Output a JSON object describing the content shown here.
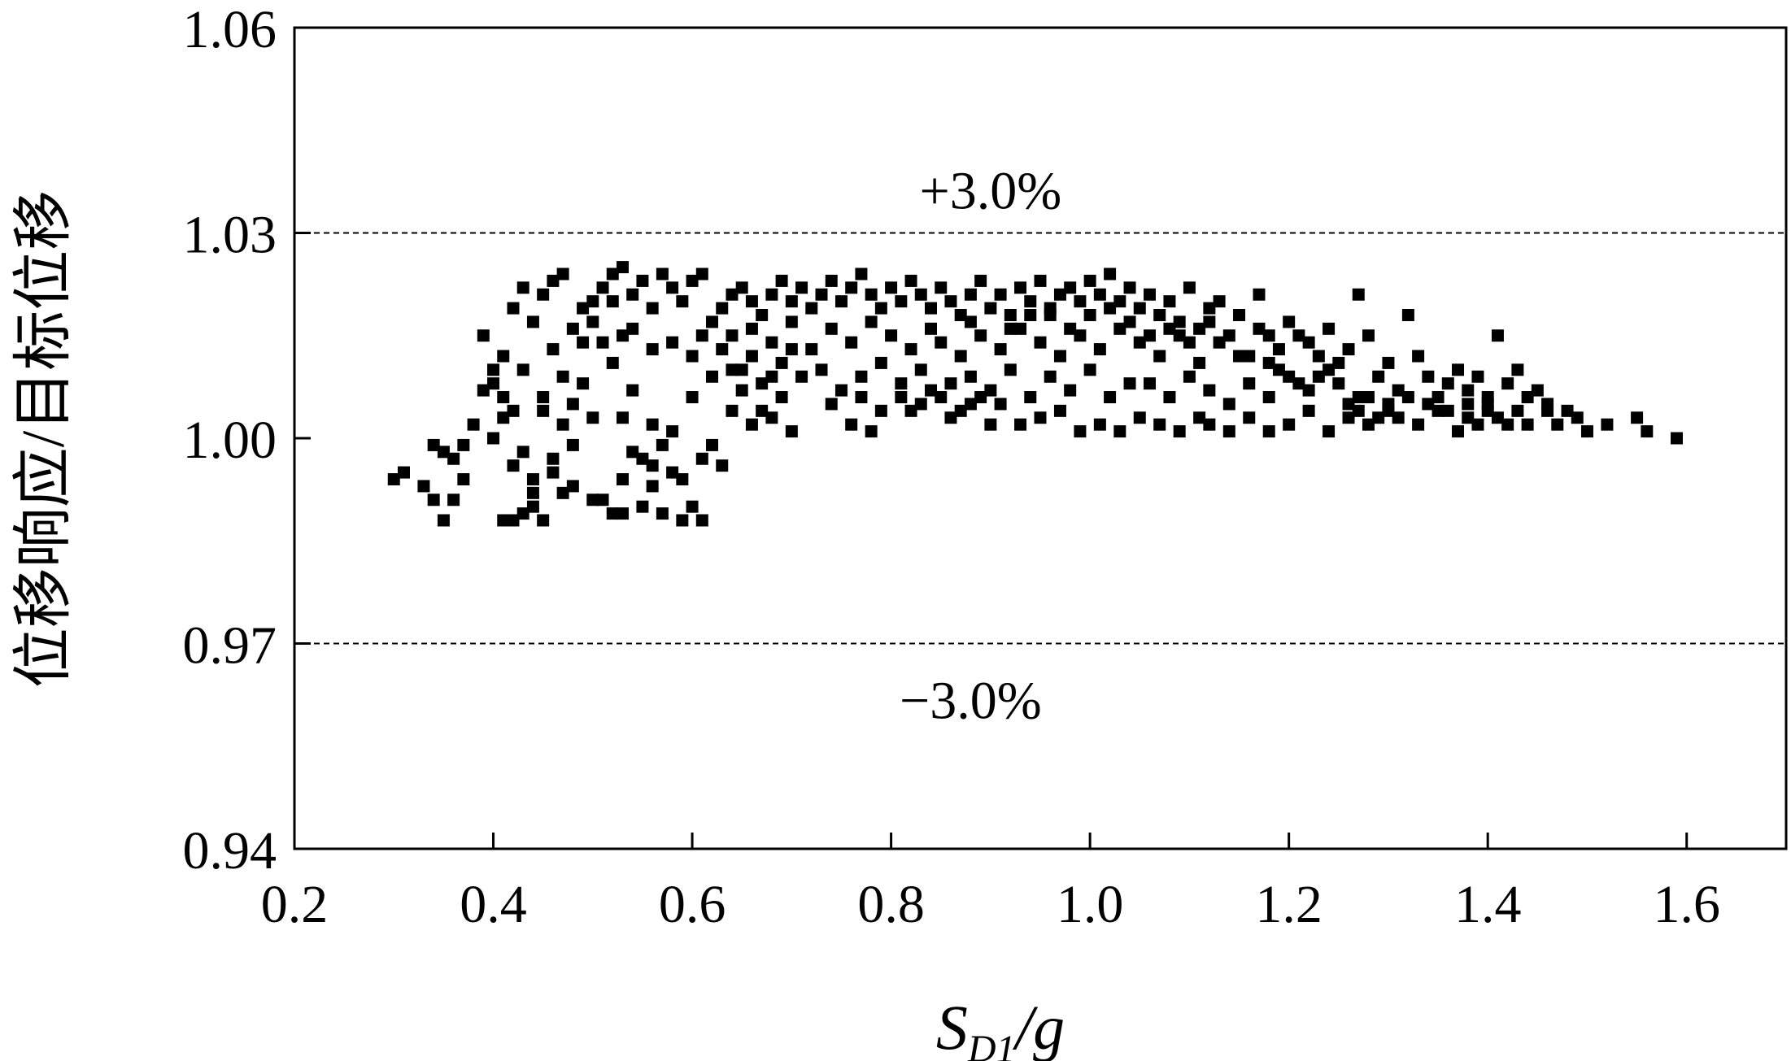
{
  "chart_data": {
    "type": "scatter",
    "title": "",
    "xlabel": {
      "main": "S",
      "sub": "D1",
      "rest": "/g"
    },
    "ylabel": "位移响应/目标位移",
    "xlim": [
      0.2,
      1.7
    ],
    "ylim": [
      0.94,
      1.06
    ],
    "xticks": [
      "0.2",
      "0.4",
      "0.6",
      "0.8",
      "1.0",
      "1.2",
      "1.4",
      "1.6"
    ],
    "yticks": [
      "0.94",
      "0.97",
      "1.00",
      "1.03",
      "1.06"
    ],
    "reference_lines": [
      {
        "y": 1.03,
        "label": "+3.0%",
        "label_x": 0.9
      },
      {
        "y": 0.97,
        "label": "−3.0%",
        "label_x": 0.88
      }
    ],
    "grid": false,
    "legend": "none",
    "marker": "square",
    "colors": {
      "marker": "#000000",
      "axes": "#000000",
      "reference_line": "#000000"
    },
    "points": [
      [
        0.3,
        0.994
      ],
      [
        0.31,
        0.995
      ],
      [
        0.33,
        0.993
      ],
      [
        0.34,
        0.991
      ],
      [
        0.35,
        0.988
      ],
      [
        0.35,
        0.998
      ],
      [
        0.36,
        0.991
      ],
      [
        0.34,
        0.999
      ],
      [
        0.37,
        0.994
      ],
      [
        0.36,
        0.997
      ],
      [
        0.37,
        0.999
      ],
      [
        0.38,
        1.002
      ],
      [
        0.39,
        1.007
      ],
      [
        0.4,
        1.0
      ],
      [
        0.39,
        1.015
      ],
      [
        0.4,
        1.01
      ],
      [
        0.41,
        1.003
      ],
      [
        0.41,
        0.988
      ],
      [
        0.42,
        0.988
      ],
      [
        0.43,
        0.989
      ],
      [
        0.44,
        0.99
      ],
      [
        0.45,
        0.988
      ],
      [
        0.44,
        0.994
      ],
      [
        0.43,
        0.998
      ],
      [
        0.42,
        1.004
      ],
      [
        0.41,
        1.012
      ],
      [
        0.42,
        1.019
      ],
      [
        0.43,
        1.022
      ],
      [
        0.44,
        1.017
      ],
      [
        0.45,
        1.021
      ],
      [
        0.46,
        1.023
      ],
      [
        0.47,
        1.024
      ],
      [
        0.46,
        1.013
      ],
      [
        0.45,
        1.006
      ],
      [
        0.46,
        0.997
      ],
      [
        0.47,
        0.992
      ],
      [
        0.48,
        1.005
      ],
      [
        0.49,
        1.014
      ],
      [
        0.5,
        1.02
      ],
      [
        0.51,
        1.022
      ],
      [
        0.52,
        1.024
      ],
      [
        0.53,
        1.025
      ],
      [
        0.54,
        1.021
      ],
      [
        0.55,
        1.023
      ],
      [
        0.56,
        1.019
      ],
      [
        0.57,
        1.024
      ],
      [
        0.58,
        1.022
      ],
      [
        0.59,
        1.02
      ],
      [
        0.6,
        1.023
      ],
      [
        0.61,
        1.024
      ],
      [
        0.5,
        0.991
      ],
      [
        0.51,
        0.991
      ],
      [
        0.52,
        0.989
      ],
      [
        0.53,
        0.989
      ],
      [
        0.55,
        0.99
      ],
      [
        0.57,
        0.989
      ],
      [
        0.59,
        0.988
      ],
      [
        0.61,
        0.988
      ],
      [
        0.56,
        0.993
      ],
      [
        0.58,
        0.995
      ],
      [
        0.55,
        0.997
      ],
      [
        0.57,
        0.999
      ],
      [
        0.53,
        1.003
      ],
      [
        0.54,
        1.007
      ],
      [
        0.56,
        1.002
      ],
      [
        0.58,
        1.001
      ],
      [
        0.6,
        1.006
      ],
      [
        0.62,
        0.999
      ],
      [
        0.63,
        0.996
      ],
      [
        0.62,
        1.009
      ],
      [
        0.51,
        1.014
      ],
      [
        0.52,
        1.011
      ],
      [
        0.54,
        1.016
      ],
      [
        0.56,
        1.013
      ],
      [
        0.58,
        1.014
      ],
      [
        0.6,
        1.012
      ],
      [
        0.49,
        1.008
      ],
      [
        0.5,
        1.003
      ],
      [
        0.48,
        0.999
      ],
      [
        0.47,
        1.002
      ],
      [
        0.63,
        1.019
      ],
      [
        0.64,
        1.021
      ],
      [
        0.65,
        1.022
      ],
      [
        0.66,
        1.02
      ],
      [
        0.67,
        1.018
      ],
      [
        0.68,
        1.021
      ],
      [
        0.69,
        1.023
      ],
      [
        0.7,
        1.02
      ],
      [
        0.71,
        1.022
      ],
      [
        0.72,
        1.019
      ],
      [
        0.73,
        1.021
      ],
      [
        0.74,
        1.023
      ],
      [
        0.75,
        1.02
      ],
      [
        0.76,
        1.022
      ],
      [
        0.77,
        1.024
      ],
      [
        0.78,
        1.021
      ],
      [
        0.79,
        1.019
      ],
      [
        0.8,
        1.022
      ],
      [
        0.81,
        1.02
      ],
      [
        0.82,
        1.023
      ],
      [
        0.64,
        1.015
      ],
      [
        0.66,
        1.016
      ],
      [
        0.68,
        1.014
      ],
      [
        0.7,
        1.017
      ],
      [
        0.72,
        1.013
      ],
      [
        0.74,
        1.016
      ],
      [
        0.76,
        1.014
      ],
      [
        0.78,
        1.017
      ],
      [
        0.8,
        1.015
      ],
      [
        0.82,
        1.013
      ],
      [
        0.65,
        1.01
      ],
      [
        0.67,
        1.008
      ],
      [
        0.69,
        1.011
      ],
      [
        0.71,
        1.009
      ],
      [
        0.73,
        1.01
      ],
      [
        0.75,
        1.007
      ],
      [
        0.77,
        1.009
      ],
      [
        0.79,
        1.011
      ],
      [
        0.81,
        1.008
      ],
      [
        0.83,
        1.01
      ],
      [
        0.64,
        1.004
      ],
      [
        0.66,
        1.002
      ],
      [
        0.68,
        1.003
      ],
      [
        0.7,
        1.001
      ],
      [
        0.74,
        1.005
      ],
      [
        0.78,
        1.001
      ],
      [
        0.82,
        1.004
      ],
      [
        0.86,
        1.003
      ],
      [
        0.88,
        1.005
      ],
      [
        0.9,
        1.002
      ],
      [
        0.83,
        1.021
      ],
      [
        0.84,
        1.019
      ],
      [
        0.85,
        1.022
      ],
      [
        0.86,
        1.02
      ],
      [
        0.87,
        1.018
      ],
      [
        0.88,
        1.021
      ],
      [
        0.89,
        1.023
      ],
      [
        0.9,
        1.019
      ],
      [
        0.91,
        1.021
      ],
      [
        0.92,
        1.018
      ],
      [
        0.93,
        1.022
      ],
      [
        0.94,
        1.02
      ],
      [
        0.95,
        1.023
      ],
      [
        0.96,
        1.019
      ],
      [
        0.97,
        1.021
      ],
      [
        0.98,
        1.022
      ],
      [
        0.99,
        1.02
      ],
      [
        1.0,
        1.023
      ],
      [
        1.01,
        1.021
      ],
      [
        1.02,
        1.024
      ],
      [
        0.85,
        1.014
      ],
      [
        0.87,
        1.012
      ],
      [
        0.89,
        1.015
      ],
      [
        0.91,
        1.013
      ],
      [
        0.93,
        1.016
      ],
      [
        0.95,
        1.014
      ],
      [
        0.97,
        1.012
      ],
      [
        0.99,
        1.015
      ],
      [
        1.01,
        1.013
      ],
      [
        1.03,
        1.016
      ],
      [
        0.86,
        1.008
      ],
      [
        0.88,
        1.009
      ],
      [
        0.9,
        1.007
      ],
      [
        0.92,
        1.01
      ],
      [
        0.94,
        1.006
      ],
      [
        0.96,
        1.009
      ],
      [
        0.98,
        1.007
      ],
      [
        1.0,
        1.01
      ],
      [
        1.02,
        1.006
      ],
      [
        1.04,
        1.008
      ],
      [
        0.93,
        1.002
      ],
      [
        0.95,
        1.003
      ],
      [
        0.97,
        1.004
      ],
      [
        0.99,
        1.001
      ],
      [
        1.01,
        1.002
      ],
      [
        1.03,
        1.001
      ],
      [
        1.05,
        1.003
      ],
      [
        1.07,
        1.002
      ],
      [
        1.09,
        1.001
      ],
      [
        1.11,
        1.003
      ],
      [
        1.03,
        1.02
      ],
      [
        1.04,
        1.022
      ],
      [
        1.05,
        1.019
      ],
      [
        1.06,
        1.021
      ],
      [
        1.07,
        1.018
      ],
      [
        1.08,
        1.02
      ],
      [
        1.09,
        1.017
      ],
      [
        1.1,
        1.022
      ],
      [
        1.11,
        1.016
      ],
      [
        1.12,
        1.019
      ],
      [
        1.05,
        1.014
      ],
      [
        1.07,
        1.012
      ],
      [
        1.09,
        1.015
      ],
      [
        1.11,
        1.011
      ],
      [
        1.13,
        1.014
      ],
      [
        1.15,
        1.012
      ],
      [
        1.17,
        1.016
      ],
      [
        1.19,
        1.013
      ],
      [
        1.21,
        1.015
      ],
      [
        1.23,
        1.012
      ],
      [
        1.06,
        1.008
      ],
      [
        1.08,
        1.006
      ],
      [
        1.1,
        1.009
      ],
      [
        1.12,
        1.007
      ],
      [
        1.14,
        1.005
      ],
      [
        1.16,
        1.008
      ],
      [
        1.18,
        1.006
      ],
      [
        1.2,
        1.009
      ],
      [
        1.22,
        1.007
      ],
      [
        1.24,
        1.01
      ],
      [
        1.13,
        1.02
      ],
      [
        1.15,
        1.018
      ],
      [
        1.17,
        1.021
      ],
      [
        1.18,
        1.015
      ],
      [
        1.2,
        1.017
      ],
      [
        1.22,
        1.014
      ],
      [
        1.24,
        1.016
      ],
      [
        1.26,
        1.013
      ],
      [
        1.27,
        1.021
      ],
      [
        1.28,
        1.015
      ],
      [
        1.12,
        1.002
      ],
      [
        1.14,
        1.001
      ],
      [
        1.16,
        1.003
      ],
      [
        1.18,
        1.001
      ],
      [
        1.2,
        1.002
      ],
      [
        1.22,
        1.004
      ],
      [
        1.24,
        1.001
      ],
      [
        1.26,
        1.003
      ],
      [
        1.28,
        1.002
      ],
      [
        1.3,
        1.004
      ],
      [
        1.25,
        1.008
      ],
      [
        1.27,
        1.006
      ],
      [
        1.29,
        1.009
      ],
      [
        1.3,
        1.011
      ],
      [
        1.31,
        1.007
      ],
      [
        1.32,
        1.018
      ],
      [
        1.33,
        1.012
      ],
      [
        1.34,
        1.009
      ],
      [
        1.35,
        1.006
      ],
      [
        1.36,
        1.008
      ],
      [
        1.31,
        1.003
      ],
      [
        1.33,
        1.002
      ],
      [
        1.35,
        1.004
      ],
      [
        1.37,
        1.001
      ],
      [
        1.38,
        1.003
      ],
      [
        1.39,
        1.002
      ],
      [
        1.4,
        1.004
      ],
      [
        1.41,
        1.003
      ],
      [
        1.42,
        1.002
      ],
      [
        1.43,
        1.004
      ],
      [
        1.37,
        1.01
      ],
      [
        1.38,
        1.007
      ],
      [
        1.39,
        1.009
      ],
      [
        1.4,
        1.006
      ],
      [
        1.41,
        1.015
      ],
      [
        1.42,
        1.008
      ],
      [
        1.43,
        1.01
      ],
      [
        1.44,
        1.006
      ],
      [
        1.45,
        1.007
      ],
      [
        1.46,
        1.004
      ],
      [
        1.44,
        1.002
      ],
      [
        1.46,
        1.005
      ],
      [
        1.47,
        1.002
      ],
      [
        1.48,
        1.004
      ],
      [
        1.49,
        1.003
      ],
      [
        1.5,
        1.001
      ],
      [
        1.52,
        1.002
      ],
      [
        1.55,
        1.003
      ],
      [
        1.56,
        1.001
      ],
      [
        1.59,
        1.0
      ],
      [
        0.4,
        1.008
      ],
      [
        0.41,
        1.006
      ],
      [
        0.43,
        1.01
      ],
      [
        0.45,
        1.004
      ],
      [
        0.47,
        1.009
      ],
      [
        0.48,
        1.016
      ],
      [
        0.49,
        1.019
      ],
      [
        0.5,
        1.017
      ],
      [
        0.52,
        1.02
      ],
      [
        0.53,
        1.015
      ],
      [
        0.42,
        0.996
      ],
      [
        0.44,
        0.992
      ],
      [
        0.46,
        0.995
      ],
      [
        0.48,
        0.993
      ],
      [
        0.53,
        0.994
      ],
      [
        0.54,
        0.998
      ],
      [
        0.56,
        0.996
      ],
      [
        0.59,
        0.994
      ],
      [
        0.61,
        0.997
      ],
      [
        0.6,
        0.99
      ],
      [
        0.61,
        1.015
      ],
      [
        0.62,
        1.017
      ],
      [
        0.63,
        1.013
      ],
      [
        0.64,
        1.01
      ],
      [
        0.65,
        1.007
      ],
      [
        0.66,
        1.012
      ],
      [
        0.67,
        1.004
      ],
      [
        0.68,
        1.009
      ],
      [
        0.69,
        1.006
      ],
      [
        0.7,
        1.013
      ],
      [
        0.76,
        1.002
      ],
      [
        0.77,
        1.006
      ],
      [
        0.79,
        1.004
      ],
      [
        0.81,
        1.006
      ],
      [
        0.83,
        1.005
      ],
      [
        0.84,
        1.007
      ],
      [
        0.85,
        1.006
      ],
      [
        0.87,
        1.004
      ],
      [
        0.89,
        1.006
      ],
      [
        0.91,
        1.005
      ],
      [
        1.08,
        1.016
      ],
      [
        1.1,
        1.014
      ],
      [
        1.12,
        1.017
      ],
      [
        1.14,
        1.015
      ],
      [
        1.16,
        1.012
      ],
      [
        1.18,
        1.011
      ],
      [
        1.19,
        1.01
      ],
      [
        1.21,
        1.008
      ],
      [
        1.23,
        1.009
      ],
      [
        1.25,
        1.011
      ],
      [
        1.26,
        1.005
      ],
      [
        1.27,
        1.004
      ],
      [
        1.28,
        1.006
      ],
      [
        1.29,
        1.003
      ],
      [
        1.3,
        1.005
      ],
      [
        1.32,
        1.006
      ],
      [
        1.34,
        1.005
      ],
      [
        1.36,
        1.004
      ],
      [
        1.38,
        1.005
      ],
      [
        1.4,
        1.005
      ],
      [
        0.96,
        1.018
      ],
      [
        0.98,
        1.016
      ],
      [
        1.0,
        1.018
      ],
      [
        1.02,
        1.019
      ],
      [
        1.04,
        1.017
      ],
      [
        1.06,
        1.015
      ],
      [
        0.92,
        1.016
      ],
      [
        0.94,
        1.018
      ],
      [
        0.88,
        1.017
      ],
      [
        0.84,
        1.016
      ]
    ]
  }
}
